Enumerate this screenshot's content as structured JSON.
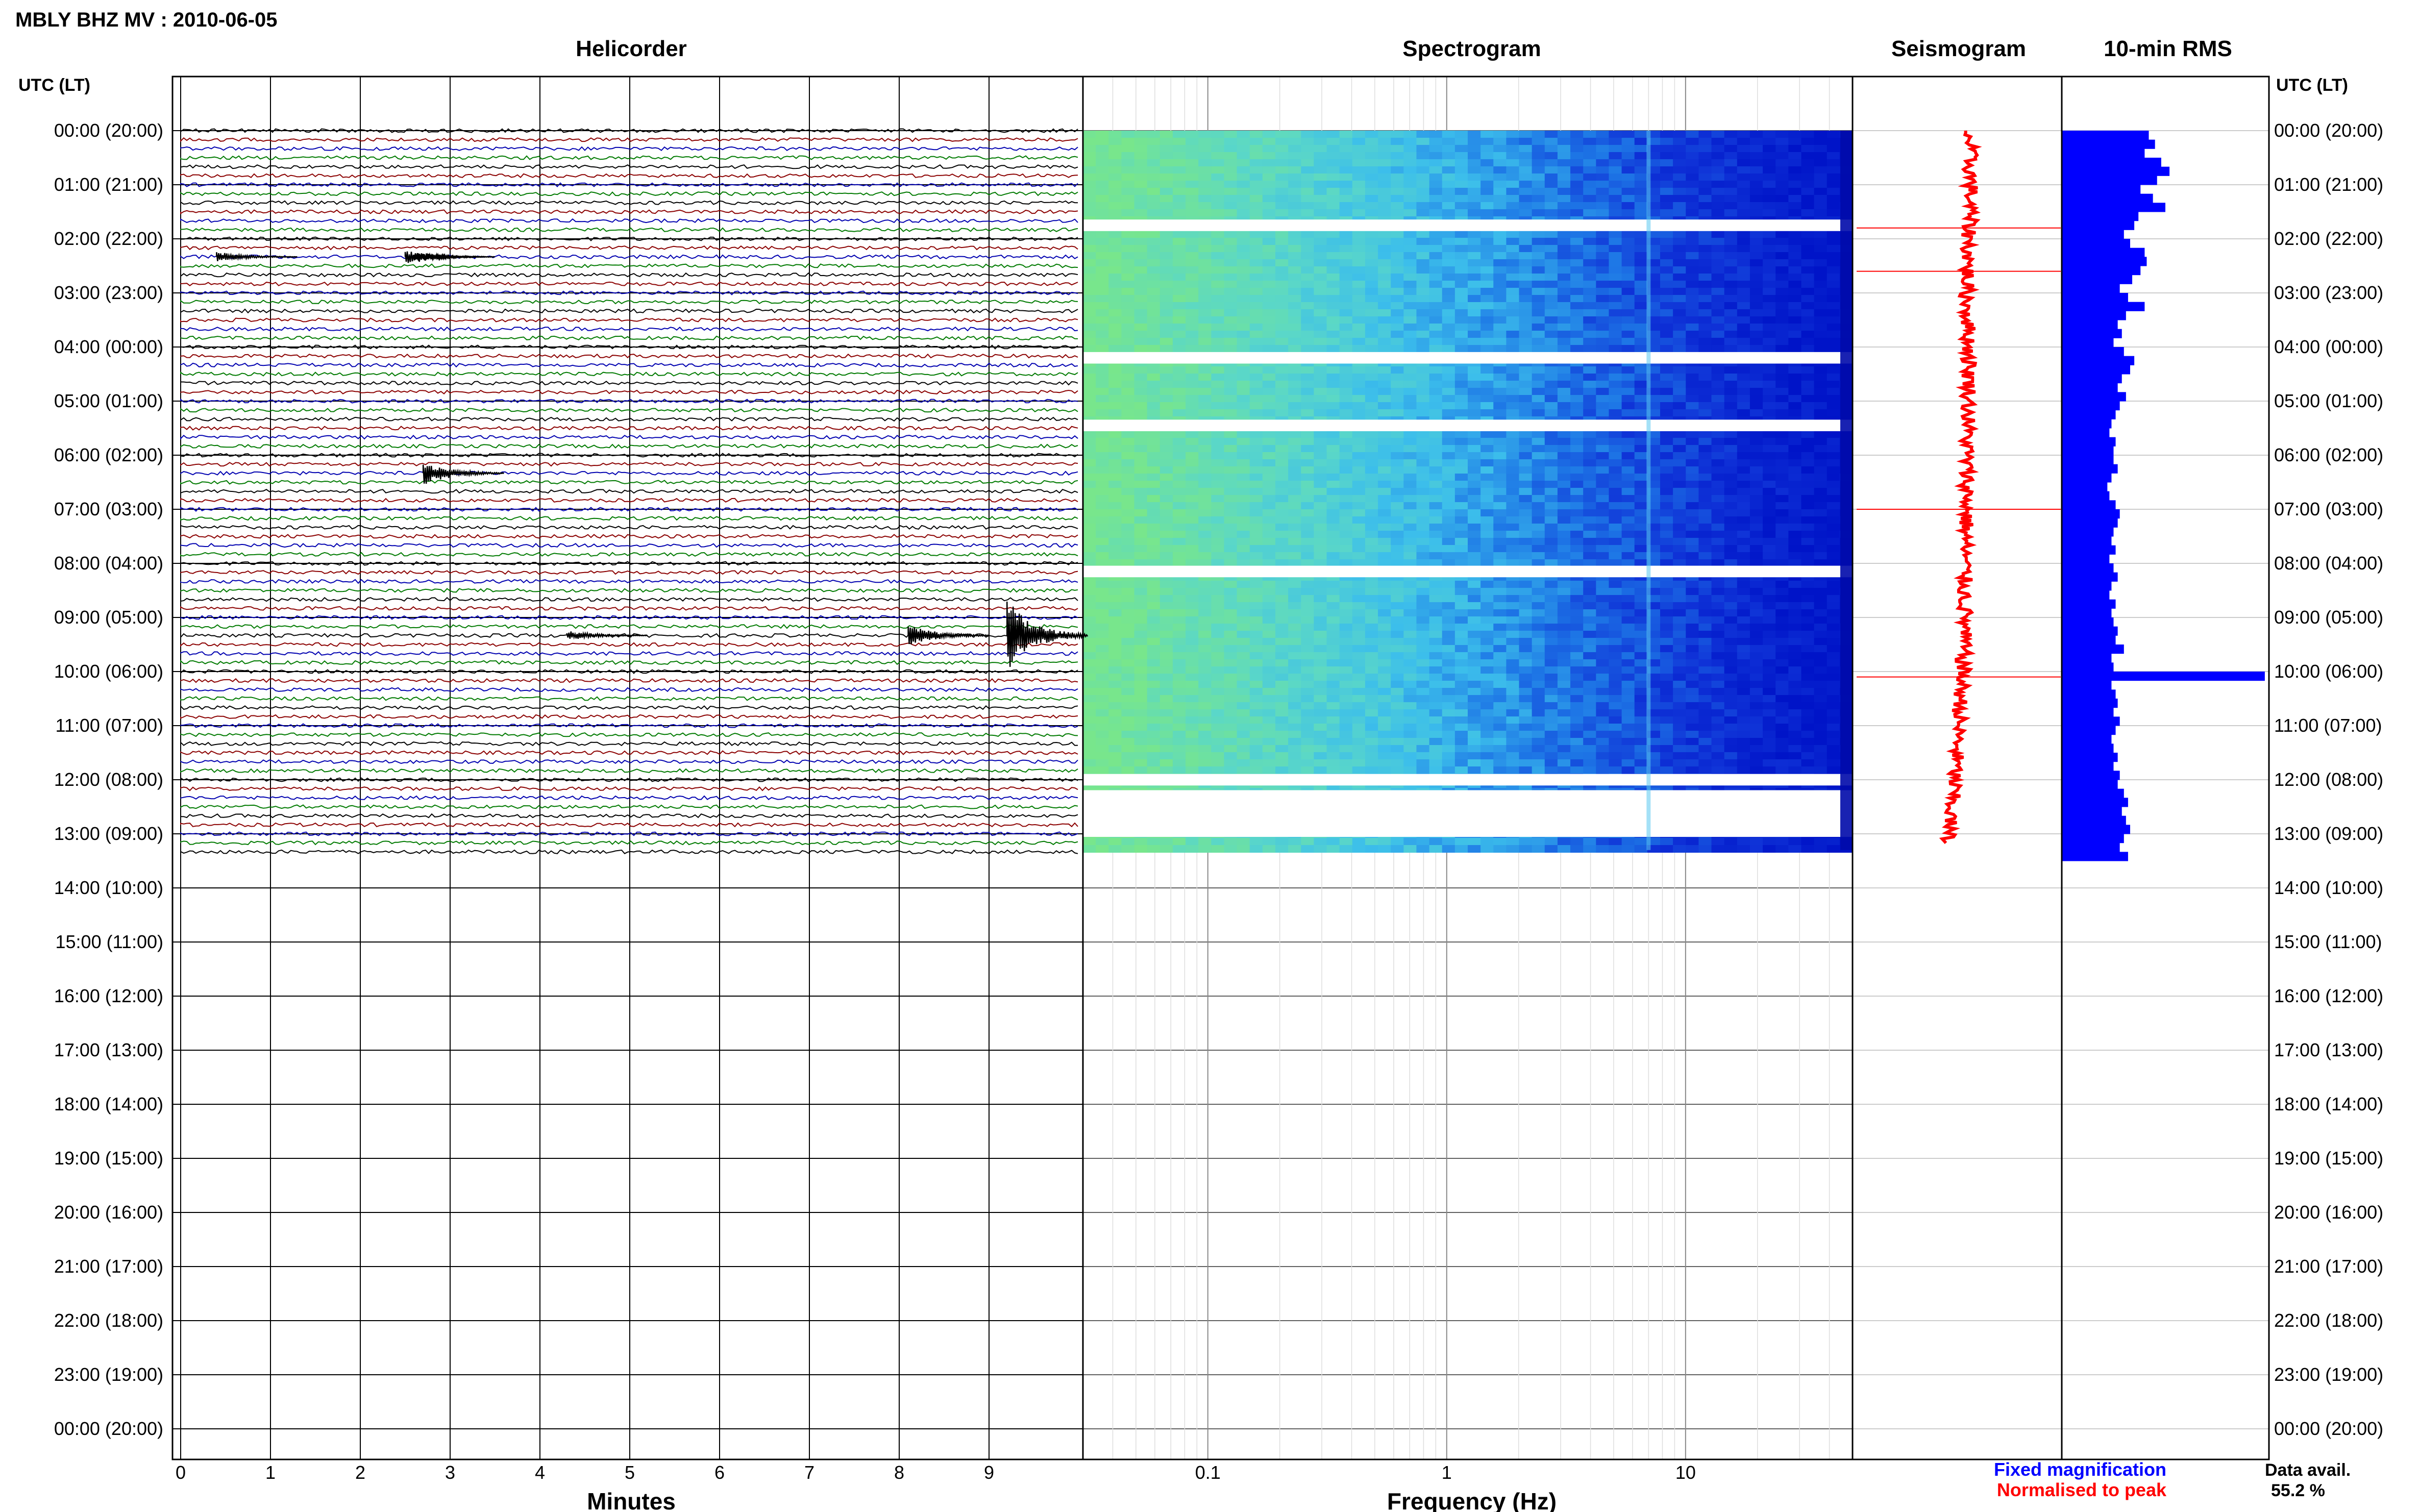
{
  "header": {
    "station_title": "MBLY BHZ MV : 2010-06-05",
    "utc_label_left": "UTC (LT)",
    "utc_label_right": "UTC (LT)"
  },
  "panels": {
    "helicorder": "Helicorder",
    "spectrogram": "Spectrogram",
    "seismogram": "Seismogram",
    "rms": "10-min RMS"
  },
  "legend": {
    "fixed_magnification": "Fixed magnification",
    "normalised_to_peak": "Normalised to peak",
    "fixed_color": "#0000ff",
    "normalised_color": "#ff0000"
  },
  "data_availability": {
    "label": "Data avail.",
    "value": "55.2 %"
  },
  "colors": {
    "trace_cycle": [
      "#000000",
      "#8b0000",
      "#0000b0",
      "#007a00"
    ],
    "rms_bar": "#0000ff",
    "seismogram_trace": "#ff0000"
  },
  "chart_data": [
    {
      "type": "line",
      "panel": "helicorder",
      "xlabel": "Minutes",
      "x_ticks": [
        "0",
        "1",
        "2",
        "3",
        "4",
        "5",
        "6",
        "7",
        "8",
        "9"
      ],
      "xlim": [
        0,
        10
      ],
      "hour_labels": [
        "00:00 (20:00)",
        "01:00 (21:00)",
        "02:00 (22:00)",
        "03:00 (23:00)",
        "04:00 (00:00)",
        "05:00 (01:00)",
        "06:00 (02:00)",
        "07:00 (03:00)",
        "08:00 (04:00)",
        "09:00 (05:00)",
        "10:00 (06:00)",
        "11:00 (07:00)",
        "12:00 (08:00)",
        "13:00 (09:00)",
        "14:00 (10:00)",
        "15:00 (11:00)",
        "16:00 (12:00)",
        "17:00 (13:00)",
        "18:00 (14:00)",
        "19:00 (15:00)",
        "20:00 (16:00)",
        "21:00 (17:00)",
        "22:00 (18:00)",
        "23:00 (19:00)",
        "00:00 (20:00)"
      ],
      "rows_per_hour": 6,
      "rows_with_data": 81,
      "events": [
        {
          "hour": 2,
          "minute": 2.5,
          "amplitude": 0.7
        },
        {
          "hour": 2,
          "minute": 0.4,
          "amplitude": 0.5
        },
        {
          "hour": 2,
          "minute": 2.6,
          "amplitude": 0.6
        },
        {
          "hour": 6,
          "minute": 2.7,
          "amplitude": 1.2
        },
        {
          "hour": 9,
          "minute": 8.1,
          "amplitude": 1.1
        },
        {
          "hour": 9,
          "minute": 9.2,
          "amplitude": 3.5
        },
        {
          "hour": 9,
          "minute": 4.3,
          "amplitude": 0.5
        }
      ]
    },
    {
      "type": "heatmap",
      "panel": "spectrogram",
      "xlabel": "Frequency (Hz)",
      "x_scale": "log",
      "xlim": [
        0.03,
        50
      ],
      "x_ticks": [
        "0.1",
        "1",
        "10"
      ],
      "data_hours": [
        0,
        13.3
      ],
      "gaps_hours": [
        [
          1.7,
          1.8
        ],
        [
          4.15,
          4.25
        ],
        [
          5.4,
          5.5
        ],
        [
          8.1,
          8.2
        ],
        [
          11.95,
          12.05
        ],
        [
          12.25,
          13.0
        ]
      ]
    },
    {
      "type": "line",
      "panel": "seismogram",
      "series": [
        {
          "name": "Normalised to peak",
          "values_per_hour": [
            0.05,
            0.06,
            0.05,
            0.04,
            0.05,
            0.05,
            0.04,
            0.04,
            0.03,
            0.03,
            0.02,
            0.0,
            -0.02,
            -0.05
          ]
        }
      ],
      "spikes_hours": [
        1.8,
        2.6,
        7.0,
        10.1
      ]
    },
    {
      "type": "bar",
      "panel": "rms",
      "orientation": "horizontal",
      "xlim": [
        0,
        1
      ],
      "bin_minutes": 10,
      "values": [
        0.42,
        0.45,
        0.4,
        0.48,
        0.52,
        0.46,
        0.38,
        0.44,
        0.5,
        0.37,
        0.35,
        0.3,
        0.33,
        0.4,
        0.41,
        0.38,
        0.34,
        0.28,
        0.32,
        0.4,
        0.31,
        0.27,
        0.29,
        0.25,
        0.3,
        0.35,
        0.33,
        0.29,
        0.27,
        0.31,
        0.28,
        0.26,
        0.24,
        0.23,
        0.26,
        0.25,
        0.25,
        0.27,
        0.24,
        0.22,
        0.23,
        0.26,
        0.28,
        0.27,
        0.25,
        0.24,
        0.26,
        0.23,
        0.25,
        0.27,
        0.24,
        0.23,
        0.26,
        0.24,
        0.25,
        0.27,
        0.26,
        0.3,
        0.24,
        0.25,
        0.98,
        0.24,
        0.26,
        0.27,
        0.25,
        0.28,
        0.26,
        0.24,
        0.25,
        0.27,
        0.25,
        0.28,
        0.27,
        0.3,
        0.32,
        0.29,
        0.31,
        0.33,
        0.3,
        0.28,
        0.32
      ]
    }
  ]
}
